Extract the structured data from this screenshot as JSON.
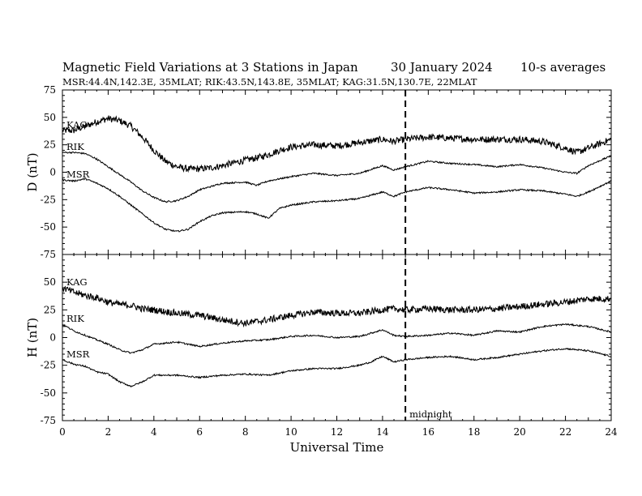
{
  "header": {
    "title": "Magnetic Field Variations at 3 Stations in Japan",
    "date": "30 January  2024",
    "averaging": "10-s averages",
    "stations_line": "MSR:44.4N,142.3E, 35MLAT;  RIK:43.5N,143.8E, 35MLAT;  KAG:31.5N,130.7E, 22MLAT"
  },
  "chart_data": [
    {
      "type": "line",
      "panel": "top",
      "ylabel": "D (nT)",
      "xlabel": "Universal Time",
      "xlim": [
        0,
        24
      ],
      "ylim": [
        -75,
        75
      ],
      "yticks": [
        75,
        50,
        25,
        0,
        -25,
        -50,
        -75
      ],
      "xticks": [
        0,
        2,
        4,
        6,
        8,
        10,
        12,
        14,
        16,
        18,
        20,
        22,
        24
      ],
      "series": [
        {
          "name": "KAG",
          "noisy": true,
          "x": [
            0,
            0.5,
            1,
            1.5,
            2,
            2.5,
            3,
            3.5,
            4,
            4.5,
            5,
            5.5,
            6,
            6.5,
            7,
            8,
            8.5,
            9,
            9.5,
            10,
            11,
            12,
            13,
            14,
            14.5,
            15,
            16,
            17,
            18,
            19,
            20,
            21,
            22,
            22.5,
            23,
            24
          ],
          "y": [
            38,
            38,
            42,
            46,
            49,
            47,
            42,
            32,
            20,
            10,
            5,
            3,
            3,
            4,
            6,
            11,
            13,
            16,
            20,
            23,
            25,
            24,
            27,
            30,
            28,
            30,
            32,
            31,
            30,
            30,
            30,
            28,
            22,
            18,
            22,
            30
          ]
        },
        {
          "name": "RIK",
          "x": [
            0,
            0.5,
            1,
            1.5,
            2,
            2.5,
            3,
            3.5,
            4,
            4.5,
            5,
            5.5,
            6,
            6.5,
            7,
            8,
            8.5,
            9,
            9.5,
            10,
            11,
            12,
            13,
            14,
            14.5,
            15,
            16,
            17,
            18,
            19,
            20,
            21,
            22,
            22.5,
            23,
            24
          ],
          "y": [
            18,
            18,
            17,
            12,
            5,
            -2,
            -9,
            -17,
            -23,
            -27,
            -26,
            -22,
            -16,
            -13,
            -10,
            -9,
            -12,
            -8,
            -6,
            -4,
            -1,
            -3,
            -1,
            6,
            2,
            5,
            10,
            8,
            7,
            5,
            7,
            4,
            0,
            -1,
            6,
            15
          ]
        },
        {
          "name": "MSR",
          "x": [
            0,
            0.5,
            1,
            1.5,
            2,
            2.5,
            3,
            3.5,
            4,
            4.5,
            5,
            5.5,
            6,
            6.5,
            7,
            8,
            8.5,
            9,
            9.5,
            10,
            11,
            12,
            13,
            14,
            14.5,
            15,
            16,
            17,
            18,
            19,
            20,
            21,
            22,
            22.5,
            23,
            24
          ],
          "y": [
            -7,
            -8,
            -6,
            -10,
            -15,
            -22,
            -30,
            -38,
            -46,
            -52,
            -54,
            -52,
            -45,
            -40,
            -37,
            -36,
            -38,
            -42,
            -33,
            -30,
            -27,
            -26,
            -24,
            -18,
            -22,
            -18,
            -14,
            -16,
            -19,
            -18,
            -16,
            -17,
            -20,
            -22,
            -18,
            -8
          ]
        }
      ]
    },
    {
      "type": "line",
      "panel": "bottom",
      "ylabel": "H (nT)",
      "xlabel": "Universal Time",
      "xlim": [
        0,
        24
      ],
      "ylim": [
        -75,
        75
      ],
      "yticks": [
        50,
        25,
        0,
        -25,
        -50,
        -75
      ],
      "xticks": [
        0,
        2,
        4,
        6,
        8,
        10,
        12,
        14,
        16,
        18,
        20,
        22,
        24
      ],
      "series": [
        {
          "name": "KAG",
          "noisy": true,
          "x": [
            0,
            0.5,
            1,
            1.5,
            2,
            2.5,
            3,
            3.5,
            4,
            5,
            6,
            7,
            8,
            9,
            10,
            11,
            12,
            13,
            14,
            14.5,
            15,
            16,
            17,
            18,
            19,
            20,
            21,
            22,
            23,
            24
          ],
          "y": [
            45,
            41,
            38,
            36,
            32,
            30,
            29,
            26,
            25,
            22,
            20,
            16,
            13,
            16,
            20,
            23,
            22,
            22,
            25,
            26,
            25,
            26,
            25,
            25,
            26,
            28,
            30,
            32,
            35,
            35
          ]
        },
        {
          "name": "RIK",
          "x": [
            0,
            0.5,
            1,
            1.5,
            2,
            2.5,
            3,
            3.5,
            4,
            5,
            6,
            7,
            8,
            9,
            10,
            11,
            12,
            13,
            13.5,
            14,
            14.5,
            15,
            16,
            17,
            18,
            19,
            20,
            21,
            22,
            23,
            24
          ],
          "y": [
            12,
            6,
            2,
            -2,
            -6,
            -11,
            -14,
            -11,
            -6,
            -4,
            -8,
            -5,
            -3,
            -2,
            1,
            2,
            0,
            1,
            4,
            7,
            2,
            1,
            2,
            4,
            2,
            6,
            5,
            10,
            12,
            10,
            5
          ]
        },
        {
          "name": "MSR",
          "x": [
            0,
            0.5,
            1,
            1.5,
            2,
            2.5,
            3,
            3.5,
            4,
            5,
            6,
            7,
            8,
            9,
            10,
            11,
            12,
            13,
            13.5,
            14,
            14.5,
            15,
            16,
            17,
            18,
            19,
            20,
            21,
            22,
            23,
            24
          ],
          "y": [
            -20,
            -24,
            -26,
            -31,
            -33,
            -40,
            -44,
            -40,
            -34,
            -34,
            -36,
            -34,
            -33,
            -34,
            -30,
            -28,
            -28,
            -25,
            -22,
            -17,
            -22,
            -20,
            -18,
            -17,
            -20,
            -18,
            -15,
            -12,
            -10,
            -12,
            -17
          ]
        }
      ]
    }
  ],
  "annotations": {
    "midnight_label": "midnight",
    "midnight_x": 15
  }
}
